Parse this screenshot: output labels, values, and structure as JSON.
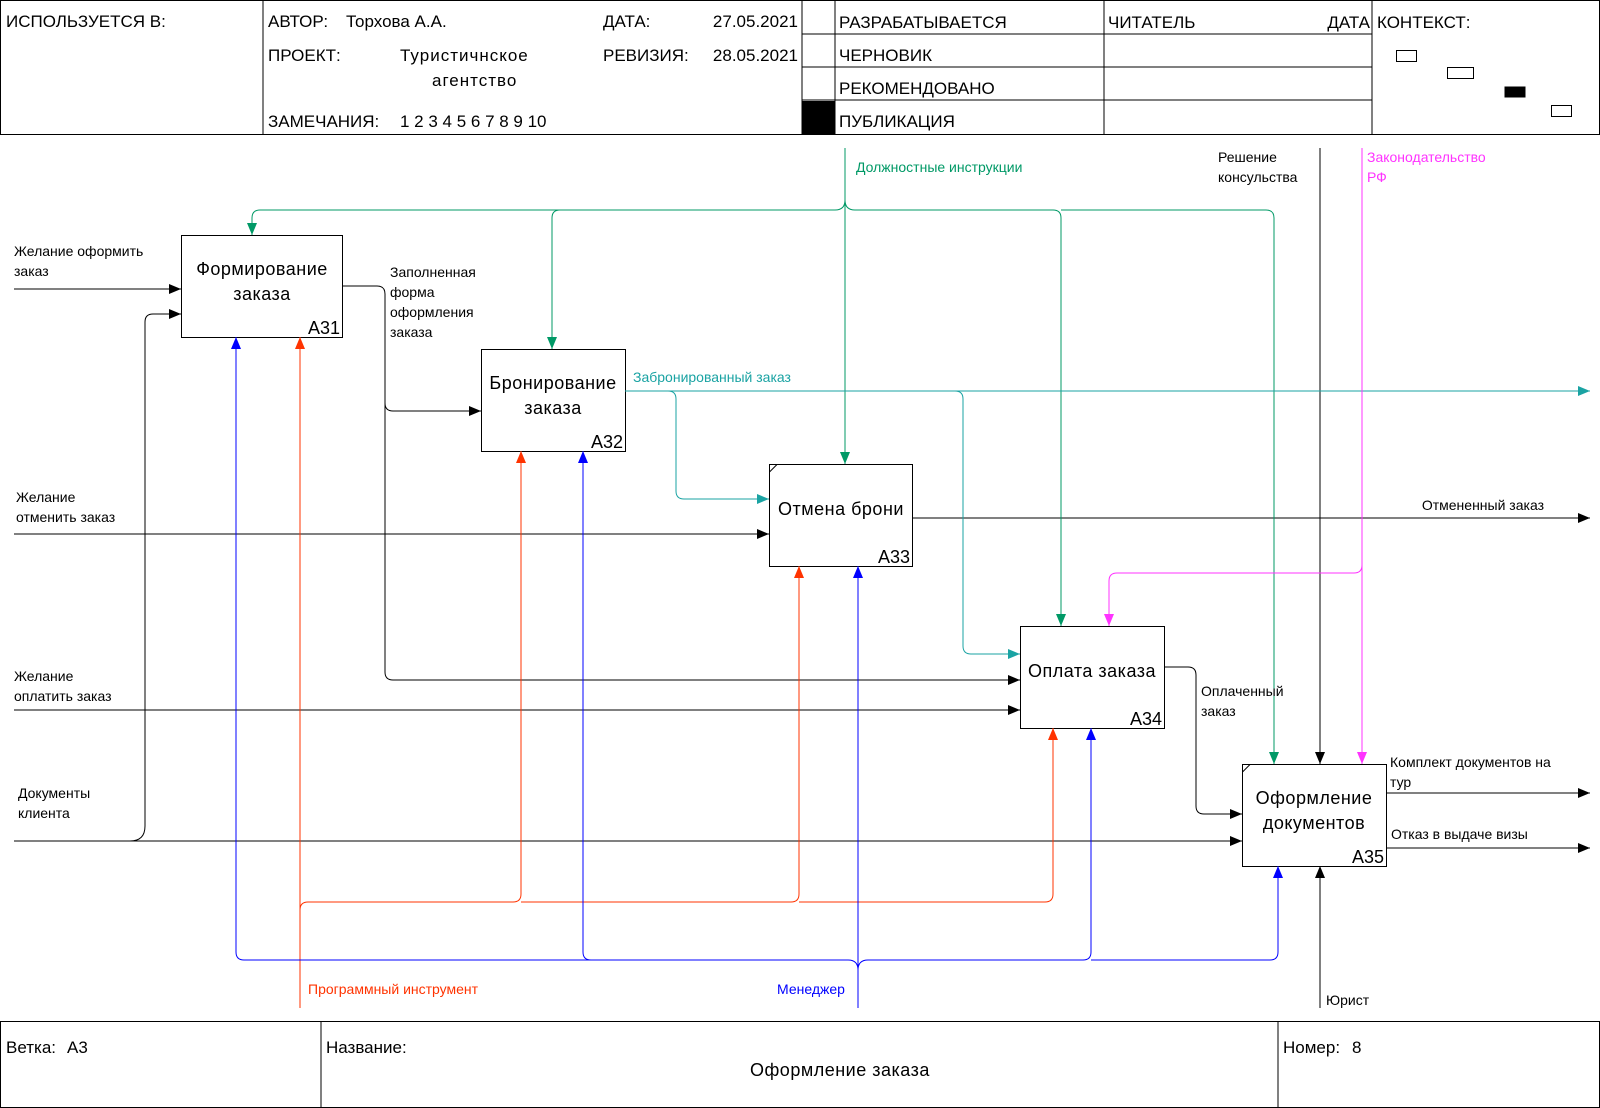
{
  "header": {
    "used_in": "ИСПОЛЬЗУЕТСЯ В:",
    "author_label": "АВТОР:",
    "author": "Торхова А.А.",
    "project_label": "ПРОЕКТ:",
    "project_line1": "Туристичнское",
    "project_line2": "агентство",
    "notes_label": "ЗАМЕЧАНИЯ:",
    "notes": "1 2 3 4 5 6 7 8 9 10",
    "date_label": "ДАТА:",
    "date": "27.05.2021",
    "revision_label": "РЕВИЗИЯ:",
    "revision": "28.05.2021",
    "status": [
      "РАЗРАБАТЫВАЕТСЯ",
      "ЧЕРНОВИК",
      "РЕКОМЕНДОВАНО",
      "ПУБЛИКАЦИЯ"
    ],
    "reader_label": "ЧИТАТЕЛЬ",
    "reader_date_label": "ДАТА",
    "context_label": "КОНТЕКСТ:"
  },
  "boxes": {
    "a31": {
      "line1": "Формирование",
      "line2": "заказа",
      "id": "A31"
    },
    "a32": {
      "line1": "Бронирование",
      "line2": "заказа",
      "id": "A32"
    },
    "a33": {
      "line1": "Отмена брони",
      "id": "A33"
    },
    "a34": {
      "line1": "Оплата заказа",
      "id": "A34"
    },
    "a35": {
      "line1": "Оформление",
      "line2": "документов",
      "id": "A35"
    }
  },
  "labels": {
    "wish_order_1": "Желание оформить",
    "wish_order_2": "заказ",
    "wish_cancel_1": "Желание",
    "wish_cancel_2": "отменить заказ",
    "wish_pay_1": "Желание",
    "wish_pay_2": "оплатить заказ",
    "docs_1": "Документы",
    "docs_2": "клиента",
    "filled_1": "Заполненная",
    "filled_2": "форма",
    "filled_3": "оформления",
    "filled_4": "заказа",
    "reserved": "Забронированный заказ",
    "instructions": "Должностные инструкции",
    "consult_1": "Решение",
    "consult_2": "консульства",
    "law_1": "Законодательство",
    "law_2": "РФ",
    "cancelled": "Отмененный заказ",
    "paid_1": "Оплаченный",
    "paid_2": "заказ",
    "kit_1": "Комплект документов на",
    "kit_2": "тур",
    "visa_refusal": "Отказ в выдаче визы",
    "software": "Программный инструмент",
    "manager": "Менеджер",
    "lawyer": "Юрист"
  },
  "footer": {
    "branch_label": "Ветка:",
    "branch": "A3",
    "name_label": "Название:",
    "name": "Оформление заказа",
    "number_label": "Номер:",
    "number": "8"
  },
  "colors": {
    "frame": "#000000",
    "instructions": "#009966",
    "reserved": "#1aa3a3",
    "law": "#ff33ff",
    "software": "#ff3300",
    "manager": "#0000ff"
  }
}
